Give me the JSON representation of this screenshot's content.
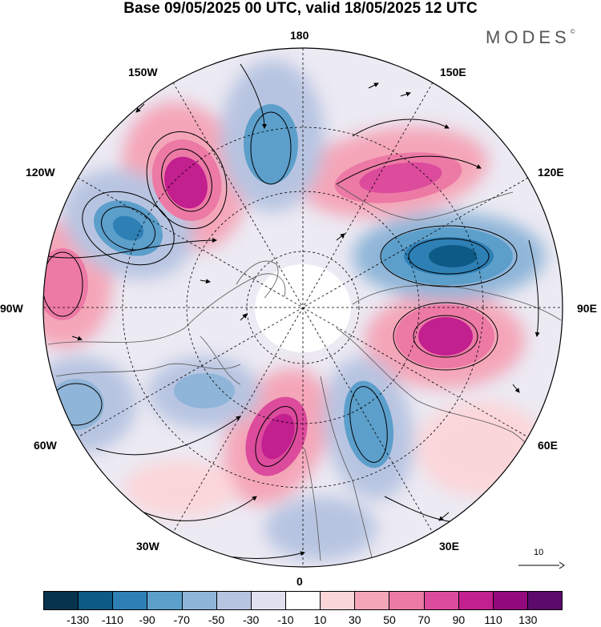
{
  "title": "Base 09/05/2025 00 UTC, valid 18/05/2025 12 UTC",
  "logo": {
    "text": "MODES",
    "mark": "©"
  },
  "longitude_labels": {
    "top": "180",
    "bottom": "0",
    "left": "90W",
    "right": "90E",
    "upper_left_inner": "150W",
    "upper_left_outer": "120W",
    "upper_right_inner": "150E",
    "upper_right_outer": "120E",
    "lower_left_outer": "60W",
    "lower_left_inner": "30W",
    "lower_right_outer": "60E",
    "lower_right_inner": "30E"
  },
  "reference_vector": {
    "label": "10"
  },
  "colorbar": {
    "colors": [
      "#08334f",
      "#0d5a86",
      "#2d7fb4",
      "#5c9fcb",
      "#8fb5d8",
      "#b7c4e1",
      "#e0e0ef",
      "#ffffff",
      "#fbd6d9",
      "#f4a6b8",
      "#ec7aa5",
      "#dc4b9c",
      "#c21f8f",
      "#930a7e",
      "#5c0a6c"
    ],
    "tick_labels": [
      "-130",
      "-110",
      "-90",
      "-70",
      "-50",
      "-30",
      "-10",
      "10",
      "30",
      "50",
      "70",
      "90",
      "110",
      "130"
    ]
  }
}
